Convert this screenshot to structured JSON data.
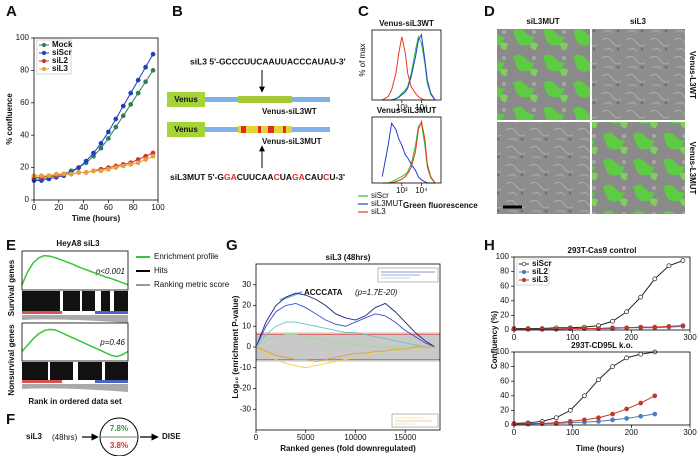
{
  "panel_a": {
    "label": "A",
    "chart": {
      "type": "line",
      "xlabel": "Time (hours)",
      "ylabel": "% confluence",
      "x": [
        0,
        6,
        12,
        18,
        24,
        30,
        36,
        42,
        48,
        54,
        60,
        66,
        72,
        78,
        84,
        90,
        96
      ],
      "xlim": [
        0,
        100
      ],
      "ylim": [
        0,
        100
      ],
      "xticks": [
        0,
        20,
        40,
        60,
        80,
        100
      ],
      "yticks": [
        0,
        20,
        40,
        60,
        80,
        100
      ],
      "markers": true,
      "legend": "upper left",
      "series": [
        {
          "name": "Mock",
          "color": "#2e7d5b",
          "values": [
            13,
            13,
            14,
            15,
            16,
            18,
            20,
            23,
            27,
            32,
            38,
            45,
            52,
            59,
            66,
            73,
            80
          ]
        },
        {
          "name": "siScr",
          "color": "#1f3fbf",
          "values": [
            12,
            12,
            13,
            14,
            15,
            17,
            20,
            24,
            29,
            35,
            42,
            50,
            58,
            66,
            74,
            82,
            90
          ]
        },
        {
          "name": "siL2",
          "color": "#d0342c",
          "values": [
            14,
            14,
            15,
            15,
            16,
            16,
            17,
            17,
            18,
            19,
            20,
            21,
            22,
            23,
            25,
            27,
            29
          ]
        },
        {
          "name": "siL3",
          "color": "#e8a03a",
          "values": [
            15,
            15,
            15,
            16,
            16,
            16,
            17,
            17,
            18,
            18,
            19,
            20,
            21,
            22,
            23,
            25,
            27
          ]
        }
      ]
    }
  },
  "panel_b": {
    "label": "B",
    "wt_sequence": "siL3 5'-GCCCUUCAAUUACCCAUAU-3'",
    "venus": "Venus",
    "wt_construct": "Venus-siL3WT",
    "mut_construct": "Venus-siL3MUT",
    "mut_sequence": [
      {
        "text": "siL3MUT 5'-G",
        "mutated": false
      },
      {
        "text": "GA",
        "mutated": true
      },
      {
        "text": "CUUCAA",
        "mutated": false
      },
      {
        "text": "C",
        "mutated": true
      },
      {
        "text": "UA",
        "mutated": false
      },
      {
        "text": "GA",
        "mutated": true
      },
      {
        "text": "CAU",
        "mutated": false
      },
      {
        "text": "C",
        "mutated": true
      },
      {
        "text": "U-3'",
        "mutated": false
      }
    ]
  },
  "panel_c": {
    "label": "C",
    "ylabel": "% of max",
    "xlabel": "Green fluorescence",
    "charts": [
      {
        "type": "line",
        "title": "Venus-siL3WT",
        "xscale": "log",
        "xlim": [
          30,
          100000
        ],
        "ylim": [
          0,
          105
        ],
        "xticks": [
          {
            "value": 1000,
            "label": "10³"
          },
          {
            "value": 10000,
            "label": "10⁴"
          }
        ],
        "x": [
          100,
          200,
          300,
          500,
          700,
          1000,
          1500,
          2000,
          3000,
          5000,
          7000,
          10000,
          15000,
          20000,
          30000,
          50000
        ],
        "series": [
          {
            "name": "siScr",
            "color": "#2fbf3a",
            "values": [
              0,
              0,
              0,
              2,
              5,
              10,
              15,
              20,
              40,
              75,
              95,
              85,
              55,
              25,
              8,
              0
            ]
          },
          {
            "name": "siL3MUT",
            "color": "#1f3fd0",
            "values": [
              0,
              0,
              0,
              2,
              4,
              8,
              12,
              18,
              35,
              65,
              90,
              98,
              60,
              30,
              10,
              0
            ]
          },
          {
            "name": "siL3",
            "color": "#e5391f",
            "values": [
              0,
              5,
              15,
              40,
              70,
              95,
              70,
              40,
              20,
              10,
              5,
              2,
              0,
              0,
              0,
              0
            ]
          }
        ]
      },
      {
        "type": "line",
        "title": "Venus-siL3MUT",
        "xscale": "log",
        "xlim": [
          30,
          100000
        ],
        "ylim": [
          0,
          105
        ],
        "xticks": [
          {
            "value": 1000,
            "label": "10³"
          },
          {
            "value": 10000,
            "label": "10⁴"
          }
        ],
        "x": [
          100,
          200,
          300,
          500,
          700,
          1000,
          1500,
          2000,
          3000,
          5000,
          7000,
          10000,
          15000,
          20000,
          30000,
          50000
        ],
        "series": [
          {
            "color": "#2fbf3a",
            "values": [
              0,
              0,
              2,
              5,
              8,
              10,
              14,
              18,
              30,
              60,
              90,
              95,
              60,
              25,
              8,
              0
            ]
          },
          {
            "color": "#1f3fd0",
            "values": [
              10,
              60,
              95,
              85,
              70,
              60,
              45,
              40,
              30,
              20,
              10,
              5,
              2,
              0,
              0,
              0
            ]
          },
          {
            "color": "#e5391f",
            "values": [
              0,
              0,
              0,
              2,
              4,
              6,
              10,
              15,
              25,
              50,
              85,
              98,
              70,
              30,
              10,
              0
            ]
          }
        ]
      }
    ]
  },
  "panel_d": {
    "label": "D",
    "columns": [
      "siL3MUT",
      "siL3"
    ],
    "rows": [
      "Venus-L3WT",
      "Venus-L3MUT"
    ]
  },
  "panel_e": {
    "label": "E",
    "title": "HeyA8 siL3",
    "xlabel": "Rank in ordered data set",
    "legend": [
      "Enrichment profile",
      "Hits",
      "Ranking metric score"
    ],
    "plots": [
      {
        "ylabel": "Survival genes",
        "p_value": "p<0.001",
        "chart": {
          "type": "line",
          "x": [
            0,
            1,
            2,
            3,
            4,
            5,
            6,
            7,
            8,
            9,
            10,
            11,
            12,
            13,
            14,
            15,
            16,
            17,
            18,
            19
          ],
          "xlim": [
            0,
            19
          ],
          "ylim": [
            -0.1,
            0.65
          ],
          "series": [
            {
              "color": "#39c43a",
              "values": [
                0,
                0.25,
                0.42,
                0.52,
                0.56,
                0.55,
                0.52,
                0.48,
                0.44,
                0.4,
                0.35,
                0.31,
                0.27,
                0.23,
                0.19,
                0.15,
                0.12,
                0.08,
                0.04,
                0
              ]
            }
          ]
        }
      },
      {
        "ylabel": "Nonsurvival genes",
        "p_value": "p=0.46",
        "chart": {
          "type": "line",
          "x": [
            0,
            1,
            2,
            3,
            4,
            5,
            6,
            7,
            8,
            9,
            10,
            11,
            12,
            13,
            14,
            15,
            16,
            17,
            18,
            19
          ],
          "xlim": [
            0,
            19
          ],
          "ylim": [
            -0.15,
            0.45
          ],
          "series": [
            {
              "color": "#39c43a",
              "values": [
                0,
                0.1,
                0.2,
                0.28,
                0.33,
                0.35,
                0.34,
                0.3,
                0.26,
                0.22,
                0.18,
                0.14,
                0.1,
                0.06,
                0.02,
                -0.02,
                -0.06,
                -0.08,
                -0.05,
                0
              ]
            }
          ]
        }
      }
    ]
  },
  "panel_f": {
    "label": "F",
    "treatment": "siL3",
    "time": "(48hrs)",
    "upper": "7.8%",
    "lower": "3.8%",
    "outcome": "DISE"
  },
  "panel_g": {
    "label": "G",
    "chart": {
      "type": "line",
      "title": "siL3 (48hrs)",
      "xlabel": "Ranked genes (fold downregulated)",
      "ylabel": "Log₁₀ (enrichment P-value)",
      "annotation": "ACCCATA",
      "annotation_stat": "(p=1.7E-20)",
      "x": [
        0,
        1000,
        2000,
        3000,
        4000,
        5000,
        6000,
        7000,
        8000,
        9000,
        10000,
        11000,
        12000,
        13000,
        14000,
        15000,
        16000,
        17000,
        18000
      ],
      "xlim": [
        0,
        18500
      ],
      "ylim": [
        -40,
        40
      ],
      "xticks": [
        0,
        5000,
        10000,
        15000
      ],
      "yticks": [
        -30,
        -20,
        -10,
        0,
        10,
        20,
        30
      ],
      "band": [
        -7,
        7
      ],
      "thresholds": [
        6,
        -6
      ],
      "threshold_color": "#e06060",
      "series": [
        {
          "color": "#1a237e",
          "values": [
            0,
            12,
            20,
            24,
            26,
            25,
            23,
            20,
            16,
            14,
            13,
            15,
            19,
            21,
            17,
            12,
            7,
            3,
            0
          ]
        },
        {
          "color": "#3b4fd8",
          "values": [
            0,
            10,
            17,
            20,
            21,
            19,
            16,
            13,
            11,
            10,
            12,
            14,
            16,
            15,
            12,
            8,
            5,
            2,
            0
          ]
        },
        {
          "color": "#5fc9c0",
          "values": [
            0,
            6,
            10,
            12,
            12,
            11,
            10,
            9,
            8,
            7,
            7,
            6,
            5,
            4,
            3,
            2,
            1,
            0,
            0
          ]
        },
        {
          "color": "#9fd99a",
          "values": [
            0,
            3,
            5,
            6,
            6,
            5,
            4,
            3,
            2,
            2,
            1,
            1,
            0,
            0,
            0,
            0,
            0,
            0,
            0
          ]
        },
        {
          "color": "#e8d84a",
          "values": [
            0,
            -3,
            -6,
            -8,
            -9,
            -10,
            -9,
            -8,
            -7,
            -6,
            -5,
            -4,
            -3,
            -2,
            -2,
            -1,
            -1,
            0,
            0
          ]
        },
        {
          "color": "#e89a4a",
          "values": [
            0,
            -2,
            -4,
            -5,
            -6,
            -6,
            -7,
            -6,
            -5,
            -4,
            -3,
            -3,
            -2,
            -2,
            -1,
            -1,
            0,
            0,
            0
          ]
        }
      ]
    }
  },
  "panel_h": {
    "label": "H",
    "ylabel": "Confluency (%)",
    "xlabel": "Time (hours)",
    "charts": [
      {
        "type": "line",
        "title": "293T-Cas9 control",
        "x": [
          0,
          24,
          48,
          72,
          96,
          120,
          144,
          168,
          192,
          216,
          240,
          264,
          288
        ],
        "xlim": [
          0,
          300
        ],
        "ylim": [
          0,
          100
        ],
        "xticks": [
          0,
          100,
          200,
          300
        ],
        "yticks": [
          0,
          20,
          40,
          60,
          80,
          100
        ],
        "markers": true,
        "legend": "upper left",
        "series": [
          {
            "name": "siScr",
            "color": "#222222",
            "marker_fill": "#ffffff",
            "values": [
              2,
              2,
              2,
              3,
              3,
              4,
              6,
              12,
              25,
              45,
              70,
              88,
              95
            ]
          },
          {
            "name": "siL2",
            "color": "#4a7fc1",
            "values": [
              1,
              1,
              1,
              1,
              2,
              2,
              2,
              2,
              3,
              3,
              3,
              4,
              5
            ]
          },
          {
            "name": "siL3",
            "color": "#c0392b",
            "values": [
              1,
              1,
              1,
              1,
              2,
              2,
              2,
              3,
              3,
              4,
              4,
              5,
              6
            ]
          }
        ]
      },
      {
        "type": "line",
        "title": "293T-CD95L k.o.",
        "x": [
          0,
          24,
          48,
          72,
          96,
          120,
          144,
          168,
          192,
          216,
          240
        ],
        "xlim": [
          0,
          300
        ],
        "ylim": [
          0,
          100
        ],
        "xticks": [
          0,
          100,
          200,
          300
        ],
        "yticks": [
          0,
          20,
          40,
          60,
          80,
          100
        ],
        "markers": true,
        "series": [
          {
            "color": "#222222",
            "marker_fill": "#ffffff",
            "values": [
              2,
              3,
              5,
              10,
              20,
              40,
              62,
              80,
              92,
              97,
              100
            ]
          },
          {
            "color": "#4a7fc1",
            "values": [
              1,
              1,
              2,
              2,
              3,
              4,
              5,
              7,
              9,
              12,
              15
            ]
          },
          {
            "color": "#c0392b",
            "values": [
              1,
              2,
              2,
              3,
              5,
              7,
              10,
              15,
              22,
              30,
              40
            ]
          }
        ]
      }
    ]
  }
}
